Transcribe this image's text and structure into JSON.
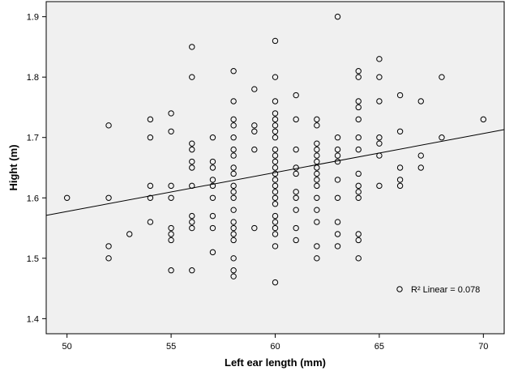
{
  "chart_data": {
    "type": "scatter",
    "title": "",
    "xlabel": "Left ear length (mm)",
    "ylabel": "Hight (m)",
    "xlim": [
      49,
      71
    ],
    "ylim": [
      1.375,
      1.925
    ],
    "xticks": [
      50,
      55,
      60,
      65,
      70
    ],
    "yticks": [
      1.4,
      1.5,
      1.6,
      1.7,
      1.8,
      1.9
    ],
    "x_tick_labels": [
      "50",
      "55",
      "60",
      "65",
      "70"
    ],
    "y_tick_labels": [
      "1.4",
      "1.5",
      "1.6",
      "1.7",
      "1.8",
      "1.9"
    ],
    "grid": false,
    "plot_background": "#f0f0f0",
    "marker": "open-circle",
    "fit_line": {
      "type": "linear",
      "x": [
        49,
        71
      ],
      "y": [
        1.571,
        1.713
      ]
    },
    "legend": {
      "text": "R² Linear = 0.078",
      "position": "bottom-right"
    },
    "points": [
      [
        50,
        1.6
      ],
      [
        52,
        1.72
      ],
      [
        52,
        1.6
      ],
      [
        52,
        1.52
      ],
      [
        52,
        1.5
      ],
      [
        53,
        1.54
      ],
      [
        54,
        1.73
      ],
      [
        54,
        1.7
      ],
      [
        54,
        1.62
      ],
      [
        54,
        1.6
      ],
      [
        54,
        1.56
      ],
      [
        55,
        1.74
      ],
      [
        55,
        1.71
      ],
      [
        55,
        1.62
      ],
      [
        55,
        1.6
      ],
      [
        55,
        1.55
      ],
      [
        55,
        1.54
      ],
      [
        55,
        1.53
      ],
      [
        55,
        1.48
      ],
      [
        56,
        1.85
      ],
      [
        56,
        1.8
      ],
      [
        56,
        1.69
      ],
      [
        56,
        1.68
      ],
      [
        56,
        1.66
      ],
      [
        56,
        1.65
      ],
      [
        56,
        1.62
      ],
      [
        56,
        1.57
      ],
      [
        56,
        1.56
      ],
      [
        56,
        1.55
      ],
      [
        56,
        1.48
      ],
      [
        57,
        1.7
      ],
      [
        57,
        1.66
      ],
      [
        57,
        1.65
      ],
      [
        57,
        1.63
      ],
      [
        57,
        1.62
      ],
      [
        57,
        1.6
      ],
      [
        57,
        1.57
      ],
      [
        57,
        1.55
      ],
      [
        57,
        1.51
      ],
      [
        58,
        1.81
      ],
      [
        58,
        1.76
      ],
      [
        58,
        1.73
      ],
      [
        58,
        1.72
      ],
      [
        58,
        1.7
      ],
      [
        58,
        1.68
      ],
      [
        58,
        1.67
      ],
      [
        58,
        1.65
      ],
      [
        58,
        1.64
      ],
      [
        58,
        1.62
      ],
      [
        58,
        1.61
      ],
      [
        58,
        1.6
      ],
      [
        58,
        1.58
      ],
      [
        58,
        1.56
      ],
      [
        58,
        1.55
      ],
      [
        58,
        1.54
      ],
      [
        58,
        1.53
      ],
      [
        58,
        1.5
      ],
      [
        58,
        1.48
      ],
      [
        58,
        1.47
      ],
      [
        59,
        1.78
      ],
      [
        59,
        1.72
      ],
      [
        59,
        1.71
      ],
      [
        59,
        1.68
      ],
      [
        59,
        1.55
      ],
      [
        60,
        1.86
      ],
      [
        60,
        1.8
      ],
      [
        60,
        1.76
      ],
      [
        60,
        1.74
      ],
      [
        60,
        1.73
      ],
      [
        60,
        1.72
      ],
      [
        60,
        1.71
      ],
      [
        60,
        1.7
      ],
      [
        60,
        1.68
      ],
      [
        60,
        1.67
      ],
      [
        60,
        1.66
      ],
      [
        60,
        1.65
      ],
      [
        60,
        1.64
      ],
      [
        60,
        1.63
      ],
      [
        60,
        1.62
      ],
      [
        60,
        1.61
      ],
      [
        60,
        1.6
      ],
      [
        60,
        1.59
      ],
      [
        60,
        1.57
      ],
      [
        60,
        1.56
      ],
      [
        60,
        1.55
      ],
      [
        60,
        1.54
      ],
      [
        60,
        1.52
      ],
      [
        60,
        1.46
      ],
      [
        61,
        1.77
      ],
      [
        61,
        1.73
      ],
      [
        61,
        1.68
      ],
      [
        61,
        1.65
      ],
      [
        61,
        1.64
      ],
      [
        61,
        1.61
      ],
      [
        61,
        1.6
      ],
      [
        61,
        1.58
      ],
      [
        61,
        1.55
      ],
      [
        61,
        1.53
      ],
      [
        62,
        1.73
      ],
      [
        62,
        1.72
      ],
      [
        62,
        1.69
      ],
      [
        62,
        1.68
      ],
      [
        62,
        1.67
      ],
      [
        62,
        1.66
      ],
      [
        62,
        1.65
      ],
      [
        62,
        1.64
      ],
      [
        62,
        1.63
      ],
      [
        62,
        1.62
      ],
      [
        62,
        1.6
      ],
      [
        62,
        1.58
      ],
      [
        62,
        1.56
      ],
      [
        62,
        1.52
      ],
      [
        62,
        1.5
      ],
      [
        63,
        1.9
      ],
      [
        63,
        1.7
      ],
      [
        63,
        1.68
      ],
      [
        63,
        1.67
      ],
      [
        63,
        1.66
      ],
      [
        63,
        1.63
      ],
      [
        63,
        1.6
      ],
      [
        63,
        1.56
      ],
      [
        63,
        1.54
      ],
      [
        63,
        1.52
      ],
      [
        64,
        1.81
      ],
      [
        64,
        1.8
      ],
      [
        64,
        1.76
      ],
      [
        64,
        1.75
      ],
      [
        64,
        1.73
      ],
      [
        64,
        1.7
      ],
      [
        64,
        1.68
      ],
      [
        64,
        1.64
      ],
      [
        64,
        1.62
      ],
      [
        64,
        1.61
      ],
      [
        64,
        1.6
      ],
      [
        64,
        1.54
      ],
      [
        64,
        1.53
      ],
      [
        64,
        1.5
      ],
      [
        65,
        1.83
      ],
      [
        65,
        1.8
      ],
      [
        65,
        1.76
      ],
      [
        65,
        1.7
      ],
      [
        65,
        1.69
      ],
      [
        65,
        1.67
      ],
      [
        65,
        1.62
      ],
      [
        66,
        1.77
      ],
      [
        66,
        1.71
      ],
      [
        66,
        1.65
      ],
      [
        66,
        1.63
      ],
      [
        66,
        1.62
      ],
      [
        67,
        1.76
      ],
      [
        67,
        1.67
      ],
      [
        67,
        1.65
      ],
      [
        68,
        1.8
      ],
      [
        68,
        1.7
      ],
      [
        70,
        1.73
      ]
    ]
  }
}
